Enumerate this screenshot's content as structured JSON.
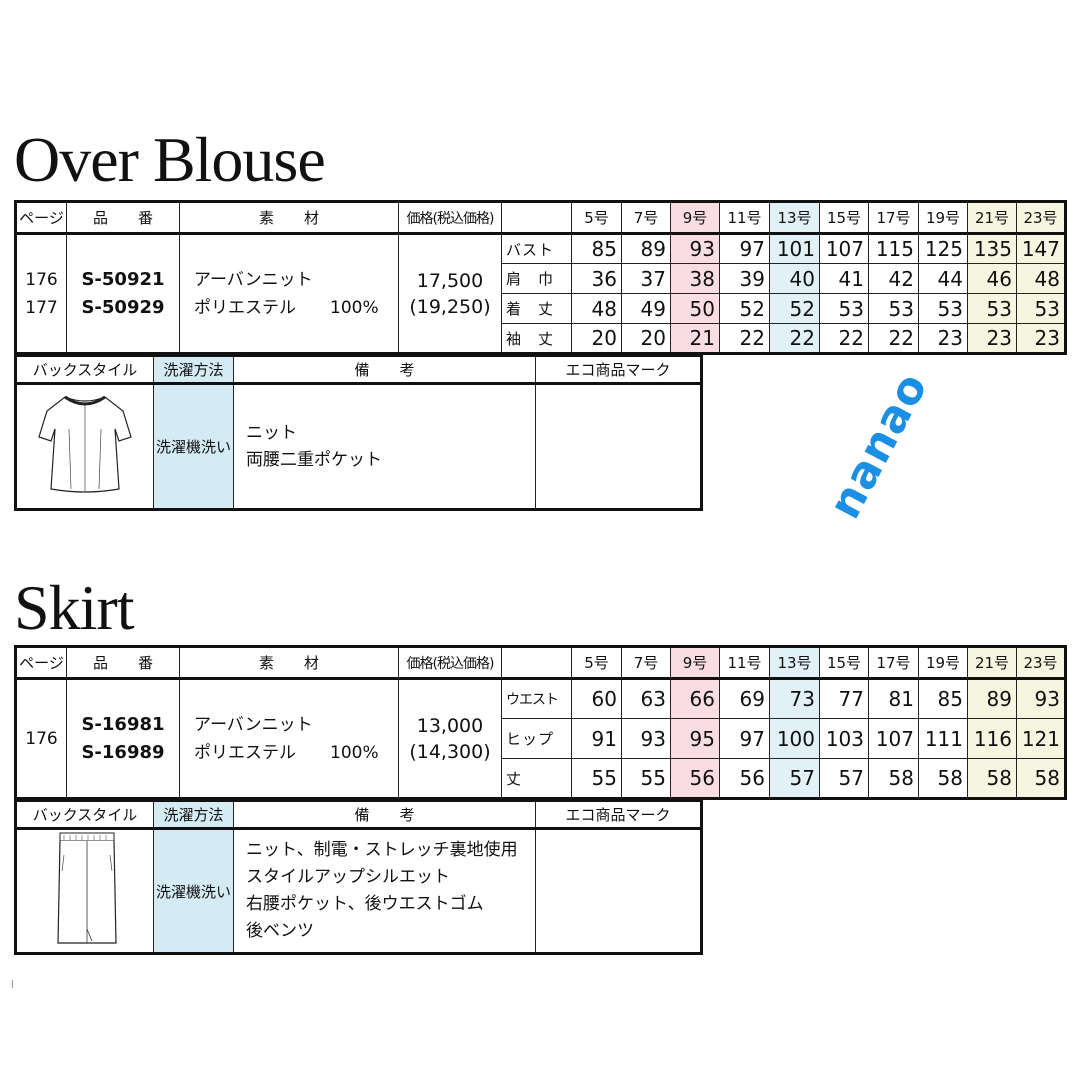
{
  "sizes": [
    "5号",
    "7号",
    "9号",
    "11号",
    "13号",
    "15号",
    "17号",
    "19号",
    "21号",
    "23号"
  ],
  "header": {
    "page": "ページ",
    "code": "品　　番",
    "material": "素　　材",
    "price": "価格(税込価格)"
  },
  "sub_header": {
    "back": "バックスタイル",
    "wash": "洗濯方法",
    "notes": "備　　考",
    "eco": "エコ商品マーク"
  },
  "highlight_colors": {
    "9号": "#f9dde2",
    "13号": "#e2f1f5",
    "21号": "#f6f6e0",
    "23号": "#f6f6e0",
    "wash": "#d5ebf3"
  },
  "watermark": "nanao",
  "sections": [
    {
      "title": "Over Blouse",
      "pages": [
        "176",
        "177"
      ],
      "codes": [
        "S-50921",
        "S-50929"
      ],
      "material": [
        "アーバンニット",
        "ポリエステル　　100%"
      ],
      "price": "17,500",
      "price_tax": "(19,250)",
      "rows": [
        {
          "label": "バスト",
          "values": [
            "85",
            "89",
            "93",
            "97",
            "101",
            "107",
            "115",
            "125",
            "135",
            "147"
          ]
        },
        {
          "label": "肩　巾",
          "values": [
            "36",
            "37",
            "38",
            "39",
            "40",
            "41",
            "42",
            "44",
            "46",
            "48"
          ]
        },
        {
          "label": "着　丈",
          "values": [
            "48",
            "49",
            "50",
            "52",
            "52",
            "53",
            "53",
            "53",
            "53",
            "53"
          ]
        },
        {
          "label": "袖　丈",
          "values": [
            "20",
            "20",
            "21",
            "22",
            "22",
            "22",
            "22",
            "23",
            "23",
            "23"
          ]
        }
      ],
      "wash": "洗濯機洗い",
      "notes": [
        "ニット",
        "両腰二重ポケット"
      ],
      "eco": "",
      "back_icon": "blouse-back-illustration"
    },
    {
      "title": "Skirt",
      "pages": [
        "176"
      ],
      "codes": [
        "S-16981",
        "S-16989"
      ],
      "material": [
        "アーバンニット",
        "ポリエステル　　100%"
      ],
      "price": "13,000",
      "price_tax": "(14,300)",
      "rows": [
        {
          "label": "ウエスト",
          "values": [
            "60",
            "63",
            "66",
            "69",
            "73",
            "77",
            "81",
            "85",
            "89",
            "93"
          ]
        },
        {
          "label": "ヒップ",
          "values": [
            "91",
            "93",
            "95",
            "97",
            "100",
            "103",
            "107",
            "111",
            "116",
            "121"
          ]
        },
        {
          "label": "丈",
          "values": [
            "55",
            "55",
            "56",
            "56",
            "57",
            "57",
            "58",
            "58",
            "58",
            "58"
          ]
        }
      ],
      "wash": "洗濯機洗い",
      "notes": [
        "ニット、制電・ストレッチ裏地使用",
        "スタイルアップシルエット",
        "右腰ポケット、後ウエストゴム",
        "後ベンツ"
      ],
      "eco": "",
      "back_icon": "skirt-back-illustration"
    }
  ]
}
